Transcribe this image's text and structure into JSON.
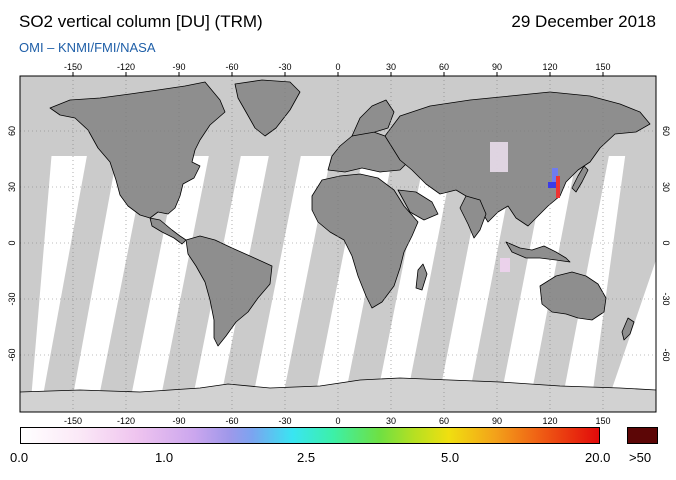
{
  "header": {
    "title": "SO2 vertical column [DU] (TRM)",
    "date": "29 December 2018",
    "credit": "OMI  –  KNMI/FMI/NASA"
  },
  "map": {
    "lon_ticks": [
      "-150",
      "-120",
      "-90",
      "-60",
      "-30",
      "0",
      "30",
      "60",
      "90",
      "120",
      "150"
    ],
    "lat_ticks": [
      "60",
      "30",
      "0",
      "-30",
      "-60"
    ],
    "colors": {
      "ocean": "#ffffff",
      "land_gap": "#8c8c8c",
      "ocean_gap": "#cbcbcb",
      "coast": "#000000",
      "grid": "#7a7a7a"
    }
  },
  "colorbar": {
    "labels": [
      "0.0",
      "1.0",
      "2.5",
      "5.0",
      "20.0",
      ">50"
    ],
    "max_color": "#5c0606"
  }
}
